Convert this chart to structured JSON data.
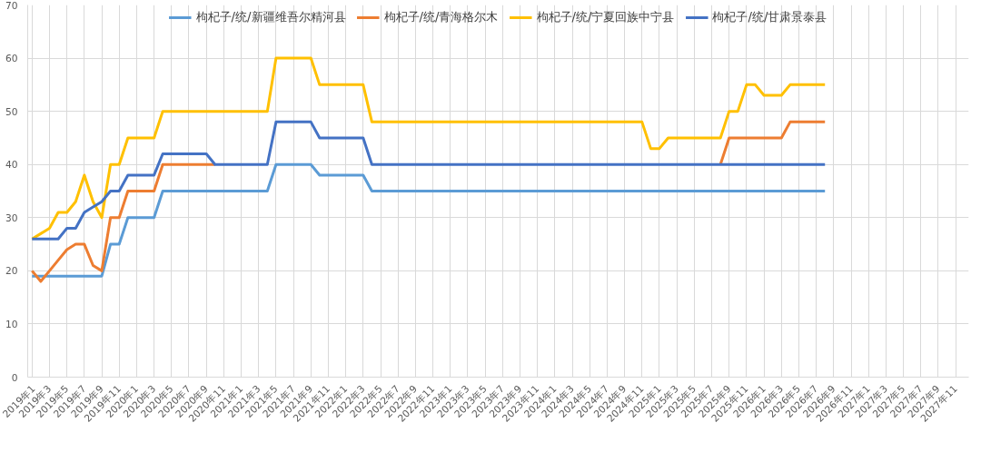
{
  "chart_data": {
    "type": "line",
    "categories": [
      "2019年1",
      null,
      "2019年3",
      null,
      "2019年5",
      null,
      "2019年7",
      null,
      "2019年9",
      null,
      "2019年11",
      null,
      "2020年1",
      null,
      "2020年3",
      null,
      "2020年5",
      null,
      "2020年7",
      null,
      "2020年9",
      null,
      "2020年11",
      null,
      "2021年1",
      null,
      "2021年3",
      null,
      "2021年5",
      null,
      "2021年7",
      null,
      "2021年9",
      null,
      "2021年11",
      null,
      "2022年1",
      null,
      "2022年3",
      null,
      "2022年5",
      null,
      "2022年7",
      null,
      "2022年9",
      null,
      "2022年11",
      null,
      "2023年1",
      null,
      "2023年3",
      null,
      "2023年5",
      null,
      "2023年7",
      null,
      "2023年9",
      null,
      "2023年11",
      null,
      "2024年1",
      null,
      "2024年3",
      null,
      "2024年5",
      null,
      "2024年7",
      null,
      "2024年9",
      null,
      "2024年11",
      null,
      "2025年1",
      null,
      "2025年3",
      null,
      "2025年5",
      null,
      "2025年7",
      null,
      "2025年9",
      null,
      "2025年11",
      null,
      "2026年1",
      null,
      "2026年3",
      null,
      "2026年5",
      null,
      "2026年7",
      null,
      "2026年9",
      null,
      "2026年11",
      null,
      "2027年1",
      null,
      "2027年3",
      null,
      "2027年5",
      null,
      "2027年7",
      null,
      "2027年9",
      null,
      "2027年11",
      null
    ],
    "series": [
      {
        "name": "枸杞子/统/新疆维吾尔精河县",
        "color": "#5b9bd5",
        "values": [
          19,
          19,
          19,
          19,
          19,
          19,
          19,
          19,
          19,
          25,
          25,
          30,
          30,
          30,
          30,
          35,
          35,
          35,
          35,
          35,
          35,
          35,
          35,
          35,
          35,
          35,
          35,
          35,
          40,
          40,
          40,
          40,
          40,
          38,
          38,
          38,
          38,
          38,
          38,
          35,
          35,
          35,
          35,
          35,
          35,
          35,
          35,
          35,
          35,
          35,
          35,
          35,
          35,
          35,
          35,
          35,
          35,
          35,
          35,
          35,
          35,
          35,
          35,
          35,
          35,
          35,
          35,
          35,
          35,
          35,
          35,
          35,
          35,
          35,
          35,
          35,
          35,
          35,
          35,
          35,
          35,
          35,
          35,
          35,
          35,
          35,
          35,
          35,
          35,
          35,
          35,
          35,
          null,
          null,
          null,
          null,
          null,
          null,
          null,
          null,
          null,
          null,
          null,
          null,
          null,
          null,
          null,
          null
        ]
      },
      {
        "name": "枸杞子/统/青海格尔木",
        "color": "#ed7d31",
        "values": [
          20,
          18,
          20,
          22,
          24,
          25,
          25,
          21,
          20,
          30,
          30,
          35,
          35,
          35,
          35,
          40,
          40,
          40,
          40,
          40,
          40,
          40,
          null,
          null,
          null,
          null,
          null,
          null,
          null,
          null,
          null,
          null,
          null,
          null,
          null,
          null,
          null,
          null,
          null,
          null,
          null,
          null,
          null,
          null,
          null,
          null,
          null,
          null,
          null,
          null,
          null,
          null,
          null,
          null,
          null,
          null,
          null,
          null,
          null,
          null,
          null,
          null,
          null,
          null,
          null,
          null,
          null,
          null,
          null,
          null,
          null,
          null,
          null,
          null,
          null,
          null,
          null,
          null,
          null,
          40,
          45,
          45,
          45,
          45,
          45,
          45,
          45,
          48,
          48,
          48,
          48,
          48,
          null,
          null,
          null,
          null,
          null,
          null,
          null,
          null,
          null,
          null,
          null,
          null,
          null,
          null,
          null,
          null
        ]
      },
      {
        "name": "枸杞子/统/宁夏回族中宁县",
        "color": "#ffc000",
        "values": [
          26,
          27,
          28,
          31,
          31,
          33,
          38,
          33,
          30,
          40,
          40,
          45,
          45,
          45,
          45,
          50,
          50,
          50,
          50,
          50,
          50,
          50,
          50,
          50,
          50,
          50,
          50,
          50,
          60,
          60,
          60,
          60,
          60,
          55,
          55,
          55,
          55,
          55,
          55,
          48,
          48,
          48,
          48,
          48,
          48,
          48,
          48,
          48,
          48,
          48,
          48,
          48,
          48,
          48,
          48,
          48,
          48,
          48,
          48,
          48,
          48,
          48,
          48,
          48,
          48,
          48,
          48,
          48,
          48,
          48,
          48,
          43,
          43,
          45,
          45,
          45,
          45,
          45,
          45,
          45,
          50,
          50,
          55,
          55,
          53,
          53,
          53,
          55,
          55,
          55,
          55,
          55,
          null,
          null,
          null,
          null,
          null,
          null,
          null,
          null,
          null,
          null,
          null,
          null,
          null,
          null,
          null,
          null
        ]
      },
      {
        "name": "枸杞子/统/甘肃景泰县",
        "color": "#4472c4",
        "values": [
          26,
          26,
          26,
          26,
          28,
          28,
          31,
          32,
          33,
          35,
          35,
          38,
          38,
          38,
          38,
          42,
          42,
          42,
          42,
          42,
          42,
          40,
          40,
          40,
          40,
          40,
          40,
          40,
          48,
          48,
          48,
          48,
          48,
          45,
          45,
          45,
          45,
          45,
          45,
          40,
          40,
          40,
          40,
          40,
          40,
          40,
          40,
          40,
          40,
          40,
          40,
          40,
          40,
          40,
          40,
          40,
          40,
          40,
          40,
          40,
          40,
          40,
          40,
          40,
          40,
          40,
          40,
          40,
          40,
          40,
          40,
          40,
          40,
          40,
          40,
          40,
          40,
          40,
          40,
          40,
          40,
          40,
          40,
          40,
          40,
          40,
          40,
          40,
          40,
          40,
          40,
          40,
          null,
          null,
          null,
          null,
          null,
          null,
          null,
          null,
          null,
          null,
          null,
          null,
          null,
          null,
          null,
          null
        ]
      }
    ],
    "ylim": [
      0,
      70
    ],
    "yticks": [
      0,
      10,
      20,
      30,
      40,
      50,
      60,
      70
    ],
    "grid": true,
    "legend": "top",
    "line_style": "solid"
  }
}
